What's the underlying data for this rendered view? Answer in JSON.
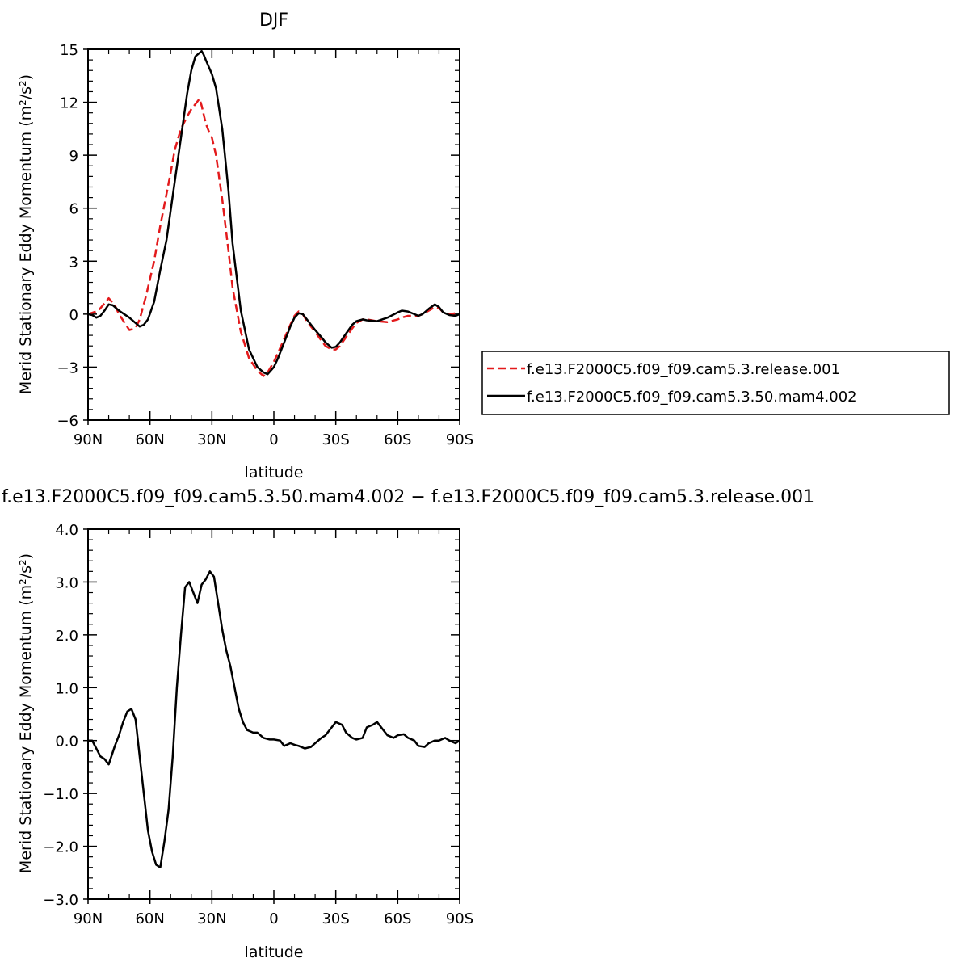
{
  "chart_data": [
    {
      "type": "line",
      "title": "DJF",
      "xlabel": "latitude",
      "ylabel": "Merid Stationary Eddy Momentum (m²/s²)",
      "xlim": [
        90,
        -90
      ],
      "ylim": [
        -6,
        15
      ],
      "x_ticks": [
        {
          "value": 90,
          "label": "90N"
        },
        {
          "value": 60,
          "label": "60N"
        },
        {
          "value": 30,
          "label": "30N"
        },
        {
          "value": 0,
          "label": "0"
        },
        {
          "value": -30,
          "label": "30S"
        },
        {
          "value": -60,
          "label": "60S"
        },
        {
          "value": -90,
          "label": "90S"
        }
      ],
      "y_ticks": [
        {
          "value": 15,
          "label": "15"
        },
        {
          "value": 12,
          "label": "12"
        },
        {
          "value": 9,
          "label": "9"
        },
        {
          "value": 6,
          "label": "6"
        },
        {
          "value": 3,
          "label": "3"
        },
        {
          "value": 0,
          "label": "0"
        },
        {
          "value": -3,
          "label": "−3"
        },
        {
          "value": -6,
          "label": "−6"
        }
      ],
      "legend": "right",
      "series": [
        {
          "name": "f.e13.F2000C5.f09_f09.cam5.3.release.001",
          "color": "#e31a1c",
          "dash": "dashed",
          "x": [
            90,
            85,
            80,
            77,
            75,
            70,
            67,
            65,
            62,
            58,
            55,
            50,
            48,
            45,
            42,
            40,
            38,
            36,
            35,
            33,
            31,
            30,
            28,
            25,
            22,
            20,
            16,
            12,
            8,
            5,
            3,
            0,
            -2,
            -5,
            -8,
            -10,
            -12,
            -14,
            -16,
            -18,
            -20,
            -23,
            -25,
            -28,
            -30,
            -32,
            -35,
            -38,
            -40,
            -43,
            -45,
            -50,
            -55,
            -60,
            -62,
            -65,
            -70,
            -72,
            -75,
            -78,
            -80,
            -82,
            -85,
            -88,
            -90
          ],
          "y": [
            0,
            0.2,
            0.9,
            0.5,
            0,
            -0.9,
            -0.8,
            -0.3,
            1,
            3,
            5,
            8,
            9.3,
            10.5,
            11.2,
            11.6,
            11.9,
            12.2,
            11.8,
            10.8,
            10.2,
            10,
            9,
            6.5,
            3.6,
            1.5,
            -1,
            -2.5,
            -3.2,
            -3.5,
            -3.3,
            -2.7,
            -2.2,
            -1.4,
            -0.6,
            -0.1,
            0.15,
            0,
            -0.4,
            -0.7,
            -1,
            -1.5,
            -1.8,
            -2,
            -2,
            -1.8,
            -1.3,
            -0.8,
            -0.5,
            -0.3,
            -0.3,
            -0.4,
            -0.45,
            -0.3,
            -0.2,
            -0.1,
            -0.1,
            0,
            0.2,
            0.4,
            0.35,
            0.1,
            0,
            0.05,
            0
          ]
        },
        {
          "name": "f.e13.F2000C5.f09_f09.cam5.3.50.mam4.002",
          "color": "#000000",
          "dash": "solid",
          "x": [
            90,
            88,
            86,
            84,
            82,
            80,
            78,
            75,
            70,
            65,
            63,
            61,
            58,
            55,
            52,
            48,
            45,
            42,
            40,
            38,
            36,
            35,
            34,
            33,
            30,
            28,
            25,
            22,
            20,
            16,
            12,
            8,
            5,
            3,
            0,
            -2,
            -5,
            -8,
            -10,
            -12,
            -14,
            -16,
            -18,
            -20,
            -23,
            -25,
            -28,
            -30,
            -32,
            -35,
            -38,
            -40,
            -43,
            -45,
            -50,
            -55,
            -60,
            -62,
            -65,
            -70,
            -72,
            -75,
            -78,
            -80,
            -82,
            -85,
            -88,
            -90
          ],
          "y": [
            0,
            -0.05,
            -0.2,
            -0.1,
            0.2,
            0.55,
            0.5,
            0.2,
            -0.2,
            -0.7,
            -0.6,
            -0.3,
            0.7,
            2.5,
            4.2,
            7.5,
            10,
            12.5,
            13.8,
            14.6,
            14.8,
            14.9,
            14.7,
            14.4,
            13.6,
            12.8,
            10.5,
            7,
            4,
            0.2,
            -2,
            -3,
            -3.3,
            -3.4,
            -3,
            -2.5,
            -1.6,
            -0.7,
            -0.2,
            0.05,
            0,
            -0.3,
            -0.6,
            -0.9,
            -1.3,
            -1.6,
            -1.9,
            -1.85,
            -1.6,
            -1.1,
            -0.6,
            -0.4,
            -0.3,
            -0.35,
            -0.4,
            -0.2,
            0.1,
            0.2,
            0.15,
            -0.1,
            0,
            0.3,
            0.55,
            0.4,
            0.1,
            -0.05,
            -0.1,
            0
          ]
        }
      ]
    },
    {
      "type": "line",
      "title": "f.e13.F2000C5.f09_f09.cam5.3.50.mam4.002 − f.e13.F2000C5.f09_f09.cam5.3.release.001",
      "xlabel": "latitude",
      "ylabel": "Merid Stationary Eddy Momentum (m²/s²)",
      "xlim": [
        90,
        -90
      ],
      "ylim": [
        -3,
        4
      ],
      "x_ticks": [
        {
          "value": 90,
          "label": "90N"
        },
        {
          "value": 60,
          "label": "60N"
        },
        {
          "value": 30,
          "label": "30N"
        },
        {
          "value": 0,
          "label": "0"
        },
        {
          "value": -30,
          "label": "30S"
        },
        {
          "value": -60,
          "label": "60S"
        },
        {
          "value": -90,
          "label": "90S"
        }
      ],
      "y_ticks": [
        {
          "value": 4,
          "label": "4.0"
        },
        {
          "value": 3,
          "label": "3.0"
        },
        {
          "value": 2,
          "label": "2.0"
        },
        {
          "value": 1,
          "label": "1.0"
        },
        {
          "value": 0,
          "label": "0.0"
        },
        {
          "value": -1,
          "label": "−1.0"
        },
        {
          "value": -2,
          "label": "−2.0"
        },
        {
          "value": -3,
          "label": "−3.0"
        }
      ],
      "series": [
        {
          "color": "#000000",
          "dash": "solid",
          "x": [
            90,
            88,
            86,
            84,
            82,
            80,
            77,
            75,
            73,
            71,
            69,
            67,
            65,
            63,
            61,
            59,
            57,
            55,
            53,
            51,
            49,
            47,
            45,
            43,
            41,
            39,
            37,
            35,
            33,
            31,
            29,
            27,
            25,
            23,
            21,
            19,
            17,
            15,
            13,
            10,
            8,
            5,
            2,
            0,
            -3,
            -5,
            -8,
            -10,
            -12,
            -15,
            -18,
            -20,
            -23,
            -25,
            -28,
            -30,
            -33,
            -35,
            -38,
            -40,
            -43,
            -45,
            -48,
            -50,
            -53,
            -55,
            -58,
            -60,
            -63,
            -65,
            -68,
            -70,
            -73,
            -75,
            -78,
            -80,
            -83,
            -85,
            -88,
            -90
          ],
          "y": [
            0,
            0,
            -0.15,
            -0.3,
            -0.35,
            -0.45,
            -0.1,
            0.1,
            0.35,
            0.55,
            0.6,
            0.4,
            -0.3,
            -1,
            -1.7,
            -2.1,
            -2.35,
            -2.4,
            -1.9,
            -1.3,
            -0.3,
            1,
            2,
            2.9,
            3,
            2.8,
            2.6,
            2.95,
            3.05,
            3.2,
            3.1,
            2.6,
            2.1,
            1.7,
            1.4,
            1,
            0.6,
            0.35,
            0.2,
            0.15,
            0.15,
            0.05,
            0.02,
            0.02,
            0,
            -0.1,
            -0.05,
            -0.08,
            -0.1,
            -0.15,
            -0.12,
            -0.05,
            0.05,
            0.1,
            0.25,
            0.35,
            0.3,
            0.15,
            0.05,
            0.02,
            0.05,
            0.25,
            0.3,
            0.35,
            0.2,
            0.1,
            0.05,
            0.1,
            0.12,
            0.05,
            0,
            -0.1,
            -0.12,
            -0.05,
            0,
            0,
            0.05,
            0,
            -0.05,
            0
          ]
        }
      ]
    }
  ]
}
